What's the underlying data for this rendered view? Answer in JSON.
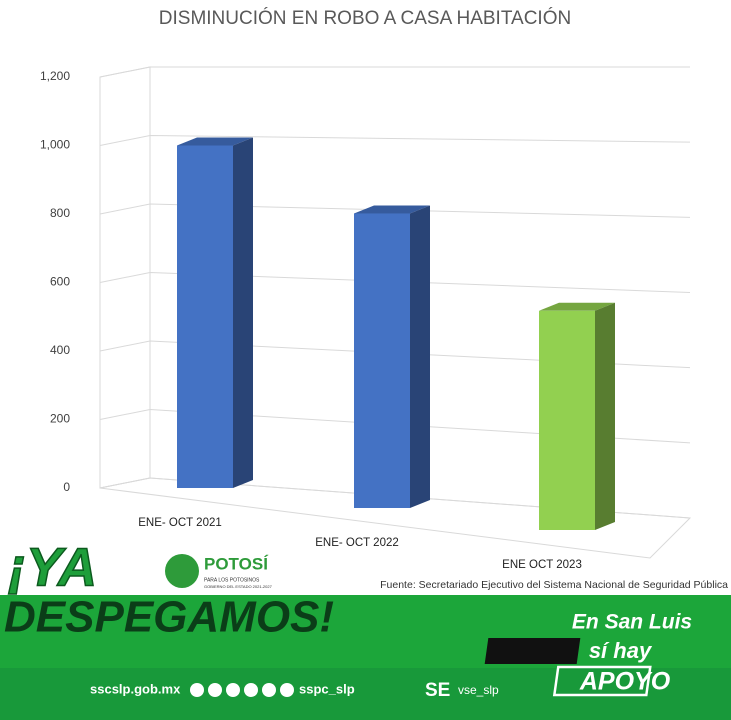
{
  "chart_data": {
    "type": "bar3d",
    "title": "DISMINUCIÓN EN ROBO A CASA HABITACIÓN",
    "categories": [
      "ENE- OCT 2021",
      "ENE- OCT 2022",
      "ENE OCT 2023"
    ],
    "values": [
      1000,
      860,
      640
    ],
    "colors": [
      "#4472c4",
      "#4472c4",
      "#92d050"
    ],
    "ylim": [
      0,
      1200
    ],
    "yticks": [
      0,
      200,
      400,
      600,
      800,
      {
        "value": 1000,
        "label": "1,000"
      },
      {
        "value": 1200,
        "label": "1,200"
      }
    ],
    "grid": true,
    "source": "Fuente: Secretariado Ejecutivo del Sistema Nacional de Seguridad Pública"
  },
  "banner": {
    "headline_top": "¡YA",
    "headline_bottom": "DESPEGAMOS!",
    "logo": "POTOSÍ",
    "logo_sub": "PARA LOS POTOSINOS",
    "logo_sub2": "GOBIERNO DEL ESTADO 2021-2027",
    "website": "sscslp.gob.mx",
    "handle": "sspc_slp",
    "se_logo": "SE",
    "se_handle": "vse_slp",
    "slogan_1": "En San Luis",
    "slogan_2": "sí hay",
    "slogan_3": "APOYO"
  }
}
